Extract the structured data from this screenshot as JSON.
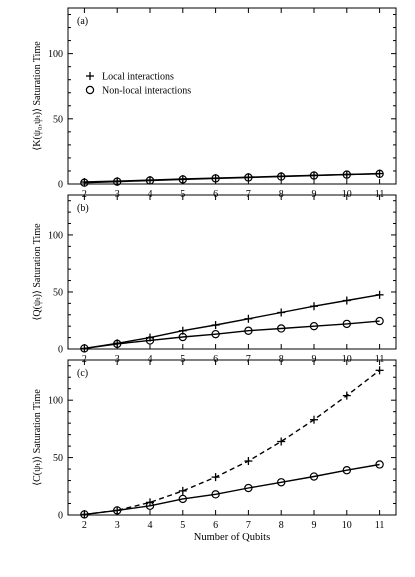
{
  "chart_data": [
    {
      "type": "line",
      "panel_label": "(a)",
      "ylabel": "⟨K(ψ₀,ψₜ)⟩ Saturation Time",
      "xlabel": "",
      "x": [
        2,
        3,
        4,
        5,
        6,
        7,
        8,
        9,
        10,
        11
      ],
      "xlim": [
        1.5,
        11.5
      ],
      "ylim": [
        0,
        135
      ],
      "yticks": [
        0,
        50,
        100
      ],
      "xticks": [
        2,
        3,
        4,
        5,
        6,
        7,
        8,
        9,
        10,
        11
      ],
      "legend": {
        "placement": "top-left"
      },
      "series": [
        {
          "name": "Local interactions",
          "marker": "plus",
          "line": "solid",
          "values": [
            1.5,
            2.2,
            3.0,
            3.8,
            4.5,
            5.2,
            6.0,
            6.7,
            7.3,
            8.0
          ]
        },
        {
          "name": "Non-local interactions",
          "marker": "circle",
          "line": "solid",
          "values": [
            1.0,
            1.8,
            2.7,
            3.5,
            4.3,
            5.0,
            5.7,
            6.5,
            7.2,
            7.8
          ]
        }
      ]
    },
    {
      "type": "line",
      "panel_label": "(b)",
      "ylabel": "⟨Q(ψₜ)⟩ Saturation Time",
      "xlabel": "",
      "x": [
        2,
        3,
        4,
        5,
        6,
        7,
        8,
        9,
        10,
        11
      ],
      "xlim": [
        1.5,
        11.5
      ],
      "ylim": [
        0,
        135
      ],
      "yticks": [
        0,
        50,
        100
      ],
      "xticks": [
        2,
        3,
        4,
        5,
        6,
        7,
        8,
        9,
        10,
        11
      ],
      "series": [
        {
          "name": "Local interactions",
          "marker": "plus",
          "line": "solid",
          "values": [
            0.5,
            5.0,
            10.0,
            16.0,
            21.0,
            26.5,
            32.0,
            37.5,
            42.5,
            47.5
          ]
        },
        {
          "name": "Non-local interactions",
          "marker": "circle",
          "line": "solid",
          "values": [
            0.5,
            4.5,
            7.5,
            10.5,
            13.0,
            16.0,
            18.0,
            20.0,
            22.0,
            24.5
          ]
        }
      ]
    },
    {
      "type": "line",
      "panel_label": "(c)",
      "ylabel": "⟨C(ψₜ)⟩ Saturation Time",
      "xlabel": "Number of Qubits",
      "x": [
        2,
        3,
        4,
        5,
        6,
        7,
        8,
        9,
        10,
        11
      ],
      "xlim": [
        1.5,
        11.5
      ],
      "ylim": [
        0,
        135
      ],
      "yticks": [
        0,
        50,
        100
      ],
      "xticks": [
        2,
        3,
        4,
        5,
        6,
        7,
        8,
        9,
        10,
        11
      ],
      "series": [
        {
          "name": "Local interactions",
          "marker": "plus",
          "line": "dashed",
          "values": [
            0.5,
            4.0,
            11.0,
            21.0,
            33.0,
            47.0,
            64.0,
            83.0,
            104.0,
            126.0
          ]
        },
        {
          "name": "Non-local interactions",
          "marker": "circle",
          "line": "solid",
          "values": [
            0.5,
            4.0,
            8.0,
            14.0,
            18.0,
            23.5,
            28.5,
            33.5,
            39.0,
            44.0
          ]
        }
      ]
    }
  ]
}
